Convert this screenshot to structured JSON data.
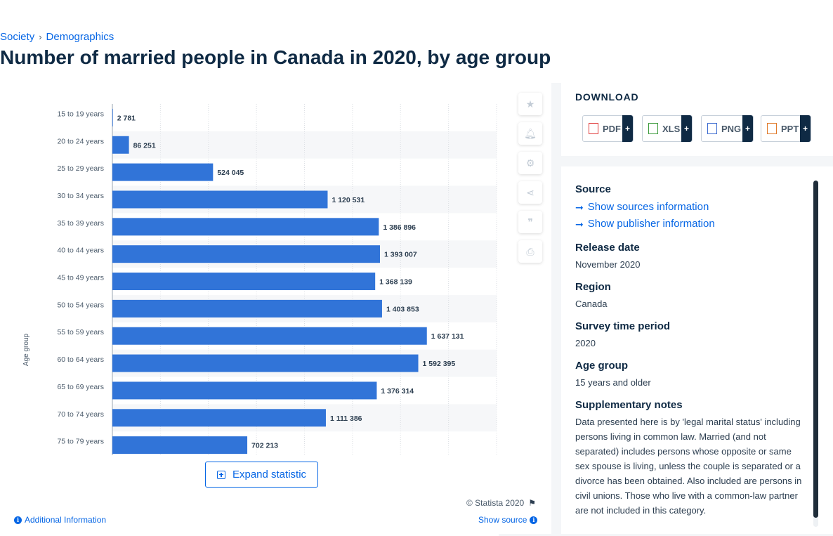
{
  "breadcrumb": {
    "items": [
      "Society",
      "Demographics"
    ]
  },
  "page": {
    "title": "Number of married people in Canada in 2020, by age group"
  },
  "chart_data": {
    "type": "bar",
    "orientation": "horizontal",
    "categories": [
      "15 to 19 years",
      "20 to 24 years",
      "25 to 29 years",
      "30 to 34 years",
      "35 to 39 years",
      "40 to 44 years",
      "45 to 49 years",
      "50 to 54 years",
      "55 to 59 years",
      "60 to 64 years",
      "65 to 69 years",
      "70 to 74 years",
      "75 to 79 years"
    ],
    "values": [
      2781,
      86251,
      524045,
      1120531,
      1386896,
      1393007,
      1368139,
      1403853,
      1637131,
      1592395,
      1376314,
      1111386,
      702213
    ],
    "value_labels": [
      "2 781",
      "86 251",
      "524 045",
      "1 120 531",
      "1 386 896",
      "1 393 007",
      "1 368 139",
      "1 403 853",
      "1 637 131",
      "1 592 395",
      "1 376 314",
      "1 111 386",
      "702 213"
    ],
    "ylabel": "Age group",
    "xlim": [
      0,
      2000000
    ],
    "grid": true,
    "bar_color": "#3174d8"
  },
  "chart_footer": {
    "expand_label": "Expand statistic",
    "copyright": "© Statista 2020",
    "additional_info": "Additional Information",
    "show_source": "Show source"
  },
  "tools": [
    "star-icon",
    "bell-icon",
    "gear-icon",
    "share-icon",
    "quote-icon",
    "print-icon"
  ],
  "download": {
    "title": "DOWNLOAD",
    "buttons": [
      {
        "label": "PDF",
        "plus": "+",
        "color": "#e03a3a"
      },
      {
        "label": "XLS",
        "plus": "+",
        "color": "#3a9a3a"
      },
      {
        "label": "PNG",
        "plus": "+",
        "color": "#3a6ad0"
      },
      {
        "label": "PPT",
        "plus": "+",
        "color": "#e07a2a"
      }
    ]
  },
  "details": {
    "source_heading": "Source",
    "sources_link": "Show sources information",
    "publisher_link": "Show publisher information",
    "release_heading": "Release date",
    "release_value": "November 2020",
    "region_heading": "Region",
    "region_value": "Canada",
    "survey_heading": "Survey time period",
    "survey_value": "2020",
    "age_heading": "Age group",
    "age_value": "15 years and older",
    "notes_heading": "Supplementary notes",
    "notes_value": "Data presented here is by 'legal marital status' including persons living in common law. Married (and not separated) includes persons whose opposite or same sex spouse is living, unless the couple is separated or a divorce has been obtained. Also included are persons in civil unions. Those who live with a common-law partner are not included in this category."
  }
}
